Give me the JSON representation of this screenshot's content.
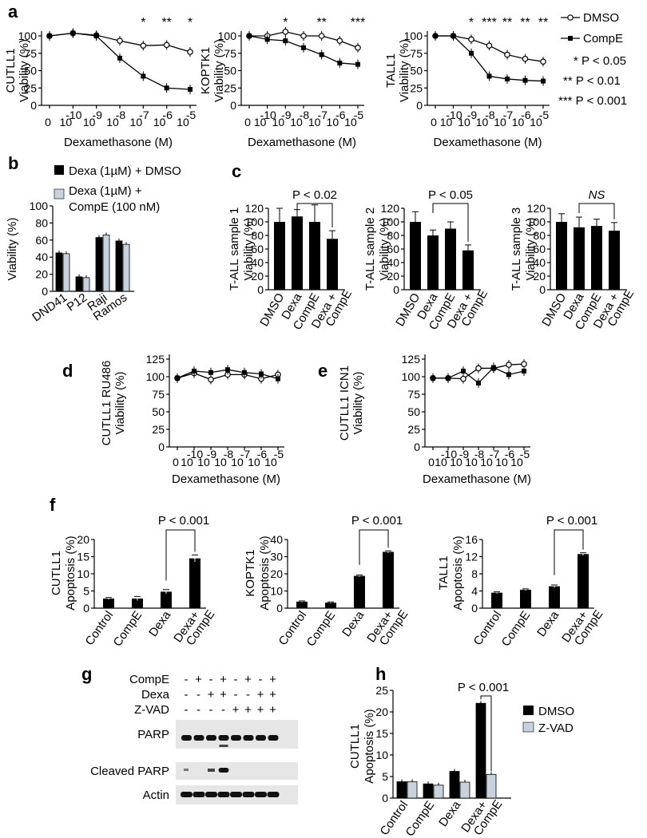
{
  "colors": {
    "black": "#000000",
    "gray": "#c8d2dc",
    "blot": "#e6e6e6"
  },
  "panel_labels": [
    "a",
    "b",
    "c",
    "d",
    "e",
    "f",
    "g",
    "h"
  ],
  "legend_a": {
    "open": "DMSO",
    "filled": "CompE",
    "p1": "* P < 0.05",
    "p2": "** P < 0.01",
    "p3": "*** P < 0.001"
  },
  "legend_b": {
    "black": "Dexa (1µM) + DMSO",
    "gray_line1": "Dexa (1µM) +",
    "gray_line2": "CompE (100 nM)"
  },
  "legend_h": {
    "black": "DMSO",
    "gray": "Z-VAD"
  },
  "x_label_dexa": "Dexamethasone (M)",
  "x_exponents": [
    "-10",
    "-9",
    "-8",
    "-7",
    "-6",
    "-5"
  ],
  "x_zero": "0",
  "x_ten": "10",
  "viability_label": "Viability (%)",
  "apoptosis_label": "Apoptosis (%)",
  "chart_data": [
    {
      "panel": "a",
      "type": "line",
      "cell": "CUTLL1",
      "ylabel": "CUTLL1 Viability (%)",
      "xlabel": "Dexamethasone (M)",
      "x": [
        "0",
        "10^-10",
        "10^-9",
        "10^-8",
        "10^-7",
        "10^-6",
        "10^-5"
      ],
      "ylim": [
        0,
        100
      ],
      "yticks": [
        0,
        25,
        50,
        75,
        100
      ],
      "series": [
        {
          "name": "DMSO",
          "values": [
            100,
            104,
            101,
            93,
            86,
            87,
            77
          ]
        },
        {
          "name": "CompE",
          "values": [
            100,
            104,
            100,
            68,
            42,
            25,
            23
          ]
        }
      ],
      "stars": [
        {
          "label": "*",
          "xi": 4
        },
        {
          "label": "**",
          "xi": 5
        },
        {
          "label": "*",
          "xi": 6
        }
      ]
    },
    {
      "panel": "a",
      "type": "line",
      "cell": "KOPTK1",
      "ylabel": "KOPTK1 Viability (%)",
      "xlabel": "Dexamethasone (M)",
      "x": [
        "0",
        "10^-10",
        "10^-9",
        "10^-8",
        "10^-7",
        "10^-6",
        "10^-5"
      ],
      "ylim": [
        0,
        100
      ],
      "yticks": [
        0,
        25,
        50,
        75,
        100
      ],
      "series": [
        {
          "name": "DMSO",
          "values": [
            100,
            100,
            106,
            100,
            100,
            93,
            83
          ]
        },
        {
          "name": "CompE",
          "values": [
            100,
            95,
            93,
            83,
            73,
            61,
            59
          ]
        }
      ],
      "stars": [
        {
          "label": "*",
          "xi": 2
        },
        {
          "label": "**",
          "xi": 4
        },
        {
          "label": "***",
          "xi": 6
        }
      ]
    },
    {
      "panel": "a",
      "type": "line",
      "cell": "TALL1",
      "ylabel": "TALL1 Viability (%)",
      "xlabel": "Dexamethasone (M)",
      "x": [
        "0",
        "10^-10",
        "10^-9",
        "10^-8",
        "10^-7",
        "10^-6",
        "10^-5"
      ],
      "ylim": [
        0,
        100
      ],
      "yticks": [
        0,
        25,
        50,
        75,
        100
      ],
      "series": [
        {
          "name": "DMSO",
          "values": [
            100,
            100,
            95,
            86,
            73,
            67,
            63
          ]
        },
        {
          "name": "CompE",
          "values": [
            100,
            100,
            75,
            42,
            38,
            36,
            35
          ]
        }
      ],
      "stars": [
        {
          "label": "*",
          "xi": 2
        },
        {
          "label": "***",
          "xi": 3
        },
        {
          "label": "**",
          "xi": 4
        },
        {
          "label": "**",
          "xi": 5
        },
        {
          "label": "**",
          "xi": 6
        }
      ]
    },
    {
      "panel": "b",
      "type": "bar",
      "ylabel": "Viability (%)",
      "categories": [
        "DND41",
        "P12",
        "Raji",
        "Ramos"
      ],
      "ylim": [
        0,
        100
      ],
      "yticks": [
        0,
        20,
        40,
        60,
        80,
        100
      ],
      "series": [
        {
          "name": "Dexa (1µM) + DMSO",
          "values": [
            45,
            17,
            63,
            59
          ]
        },
        {
          "name": "Dexa (1µM) + CompE (100 nM)",
          "values": [
            44,
            16,
            66,
            55
          ]
        }
      ]
    },
    {
      "panel": "c",
      "type": "bar",
      "ylabel": "T-ALL sample 1 Viability (%)",
      "categories": [
        "DMSO",
        "Dexa",
        "CompE",
        "Dexa + CompE"
      ],
      "ylim": [
        0,
        120
      ],
      "yticks": [
        0,
        20,
        40,
        60,
        80,
        100,
        120
      ],
      "values": [
        100,
        108,
        100,
        75
      ],
      "errors": [
        20,
        10,
        25,
        12
      ],
      "sig": "P < 0.02"
    },
    {
      "panel": "c",
      "type": "bar",
      "ylabel": "T-ALL sample 2 Viability (%)",
      "categories": [
        "DMSO",
        "Dexa",
        "CompE",
        "Dexa + CompE"
      ],
      "ylim": [
        0,
        120
      ],
      "yticks": [
        0,
        20,
        40,
        60,
        80,
        100,
        120
      ],
      "values": [
        100,
        80,
        90,
        58
      ],
      "errors": [
        15,
        8,
        10,
        8
      ],
      "sig": "P < 0.05"
    },
    {
      "panel": "c",
      "type": "bar",
      "ylabel": "T-ALL sample 3 Viability (%)",
      "categories": [
        "DMSO",
        "Dexa",
        "CompE",
        "Dexa + CompE"
      ],
      "ylim": [
        0,
        120
      ],
      "yticks": [
        0,
        20,
        40,
        60,
        80,
        100,
        120
      ],
      "values": [
        100,
        92,
        94,
        87
      ],
      "errors": [
        12,
        15,
        10,
        12
      ],
      "sig": "NS"
    },
    {
      "panel": "d",
      "type": "line",
      "ylabel": "CUTLL1 RU486 Viability (%)",
      "xlabel": "Dexamethasone (M)",
      "x": [
        "0",
        "10^-10",
        "10^-9",
        "10^-8",
        "10^-7",
        "10^-6",
        "10^-5"
      ],
      "ylim": [
        0,
        125
      ],
      "yticks": [
        0,
        25,
        50,
        75,
        100,
        125
      ],
      "series": [
        {
          "name": "open",
          "values": [
            98,
            105,
            96,
            103,
            103,
            97,
            103
          ]
        },
        {
          "name": "filled",
          "values": [
            98,
            108,
            106,
            110,
            106,
            104,
            97
          ]
        }
      ]
    },
    {
      "panel": "e",
      "type": "line",
      "ylabel": "CUTLL1 ICN1 Viability (%)",
      "xlabel": "Dexamethasone (M)",
      "x": [
        "0",
        "10^-10",
        "10^-9",
        "10^-8",
        "10^-7",
        "10^-6",
        "10^-5"
      ],
      "ylim": [
        0,
        125
      ],
      "yticks": [
        0,
        25,
        50,
        75,
        100,
        125
      ],
      "series": [
        {
          "name": "open",
          "values": [
            98,
            98,
            97,
            112,
            112,
            117,
            118
          ]
        },
        {
          "name": "filled",
          "values": [
            98,
            98,
            108,
            91,
            113,
            103,
            108
          ]
        }
      ]
    },
    {
      "panel": "f",
      "type": "bar",
      "ylabel": "CUTLL1 Apoptosis (%)",
      "categories": [
        "Control",
        "CompE",
        "Dexa",
        "Dexa+ CompE"
      ],
      "ylim": [
        0,
        20
      ],
      "yticks": [
        0,
        5,
        10,
        15,
        20
      ],
      "values": [
        2.8,
        2.8,
        4.8,
        14.5
      ],
      "errors": [
        0.3,
        0.6,
        0.6,
        1.0
      ],
      "sig": "P < 0.001"
    },
    {
      "panel": "f",
      "type": "bar",
      "ylabel": "KOPTK1 Apoptosis (%)",
      "categories": [
        "Control",
        "CompE",
        "Dexa",
        "Dexa+ CompE"
      ],
      "ylim": [
        0,
        40
      ],
      "yticks": [
        0,
        10,
        20,
        30,
        40
      ],
      "values": [
        3.8,
        3.2,
        18.8,
        32.8
      ],
      "errors": [
        0.4,
        0.4,
        0.5,
        0.6
      ],
      "sig": "P < 0.001"
    },
    {
      "panel": "f",
      "type": "bar",
      "ylabel": "TALL1 Apoptosis (%)",
      "categories": [
        "Control",
        "CompE",
        "Dexa",
        "Dexa+ CompE"
      ],
      "ylim": [
        0,
        16
      ],
      "yticks": [
        0,
        4,
        8,
        12,
        16
      ],
      "values": [
        3.6,
        4.3,
        5.1,
        12.6
      ],
      "errors": [
        0.2,
        0.2,
        0.3,
        0.3
      ],
      "sig": "P < 0.001"
    },
    {
      "panel": "h",
      "type": "bar",
      "ylabel": "CUTLL1 Apoptosis (%)",
      "categories": [
        "Control",
        "CompE",
        "Dexa",
        "Dexa+ CompE"
      ],
      "ylim": [
        0,
        25
      ],
      "yticks": [
        0,
        5,
        10,
        15,
        20,
        25
      ],
      "series": [
        {
          "name": "DMSO",
          "values": [
            3.8,
            3.3,
            6.2,
            22
          ]
        },
        {
          "name": "Z-VAD",
          "values": [
            3.8,
            3.0,
            3.7,
            5.5
          ]
        }
      ],
      "sig": "P < 0.001"
    }
  ],
  "blot": {
    "rows": [
      {
        "label": "CompE",
        "values": [
          "-",
          "+",
          "-",
          "+",
          "-",
          "+",
          "-",
          "+"
        ]
      },
      {
        "label": "Dexa",
        "values": [
          "-",
          "-",
          "+",
          "+",
          "-",
          "-",
          "+",
          "+"
        ]
      },
      {
        "label": "Z-VAD",
        "values": [
          "-",
          "-",
          "-",
          "-",
          "+",
          "+",
          "+",
          "+"
        ]
      }
    ],
    "bands": [
      {
        "label": "PARP"
      },
      {
        "label": "Cleaved PARP"
      },
      {
        "label": "Actin"
      }
    ]
  }
}
